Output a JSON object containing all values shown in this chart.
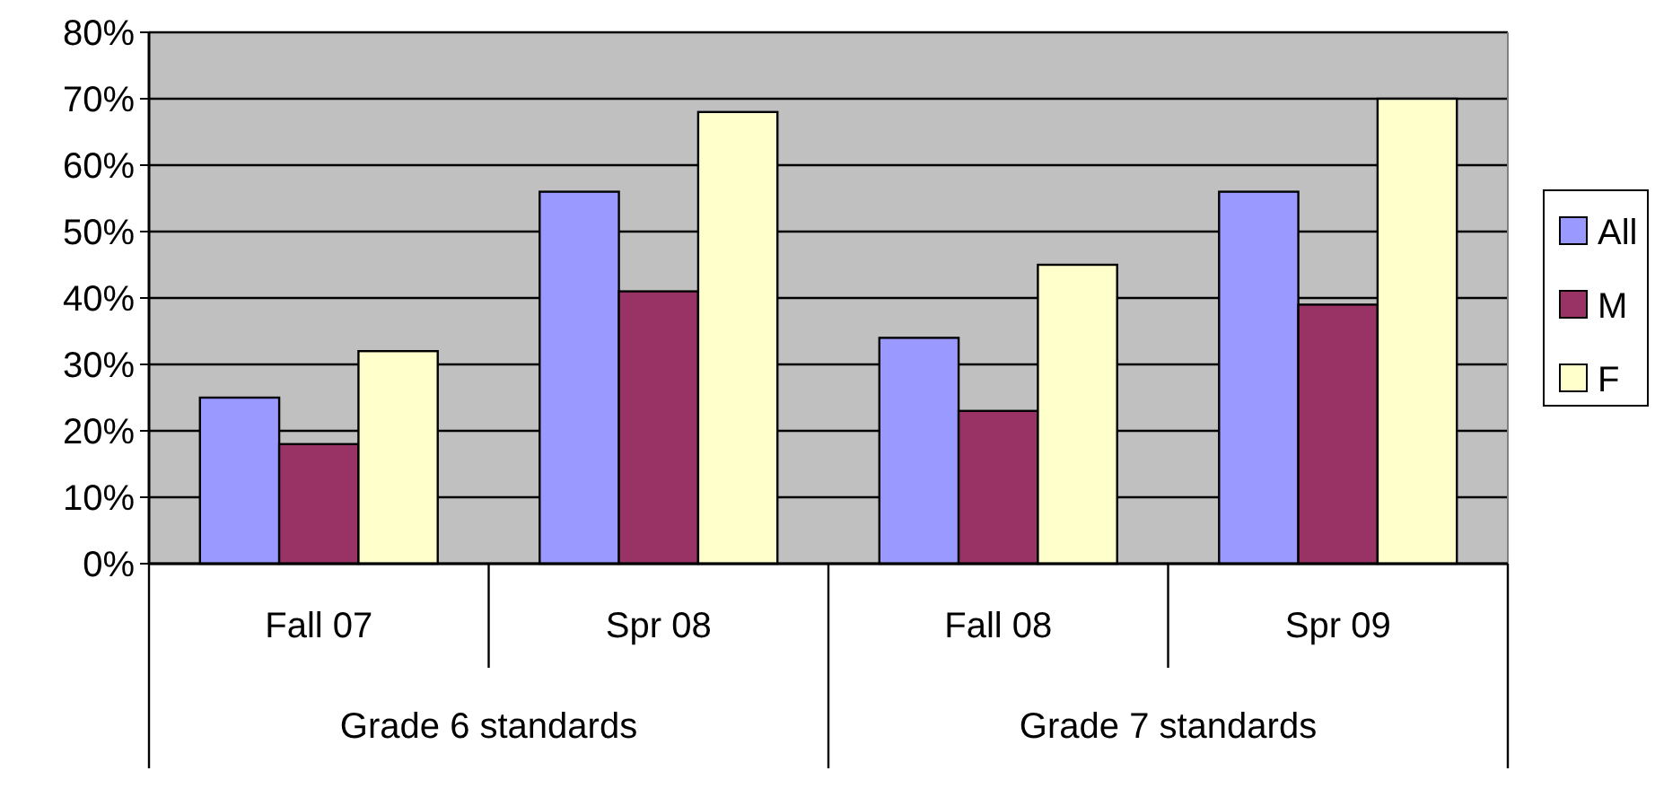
{
  "chart_data": {
    "type": "bar",
    "categories": [
      "Fall 07",
      "Spr 08",
      "Fall 08",
      "Spr 09"
    ],
    "series": [
      {
        "name": "All",
        "color": "#9999ff",
        "values": [
          25,
          56,
          34,
          56
        ]
      },
      {
        "name": "M",
        "color": "#993366",
        "values": [
          18,
          41,
          23,
          39
        ]
      },
      {
        "name": "F",
        "color": "#ffffcc",
        "values": [
          32,
          68,
          45,
          70
        ]
      }
    ],
    "ylim": [
      0,
      80
    ],
    "yticks": [
      {
        "value": 0,
        "label": "0%"
      },
      {
        "value": 10,
        "label": "10%"
      },
      {
        "value": 20,
        "label": "20%"
      },
      {
        "value": 30,
        "label": "30%"
      },
      {
        "value": 40,
        "label": "40%"
      },
      {
        "value": 50,
        "label": "50%"
      },
      {
        "value": 60,
        "label": "60%"
      },
      {
        "value": 70,
        "label": "70%"
      },
      {
        "value": 80,
        "label": "80%"
      }
    ],
    "annotations": [
      "Grade 6 standards",
      "Grade 7 standards"
    ],
    "grid": "y",
    "legend": "right"
  }
}
